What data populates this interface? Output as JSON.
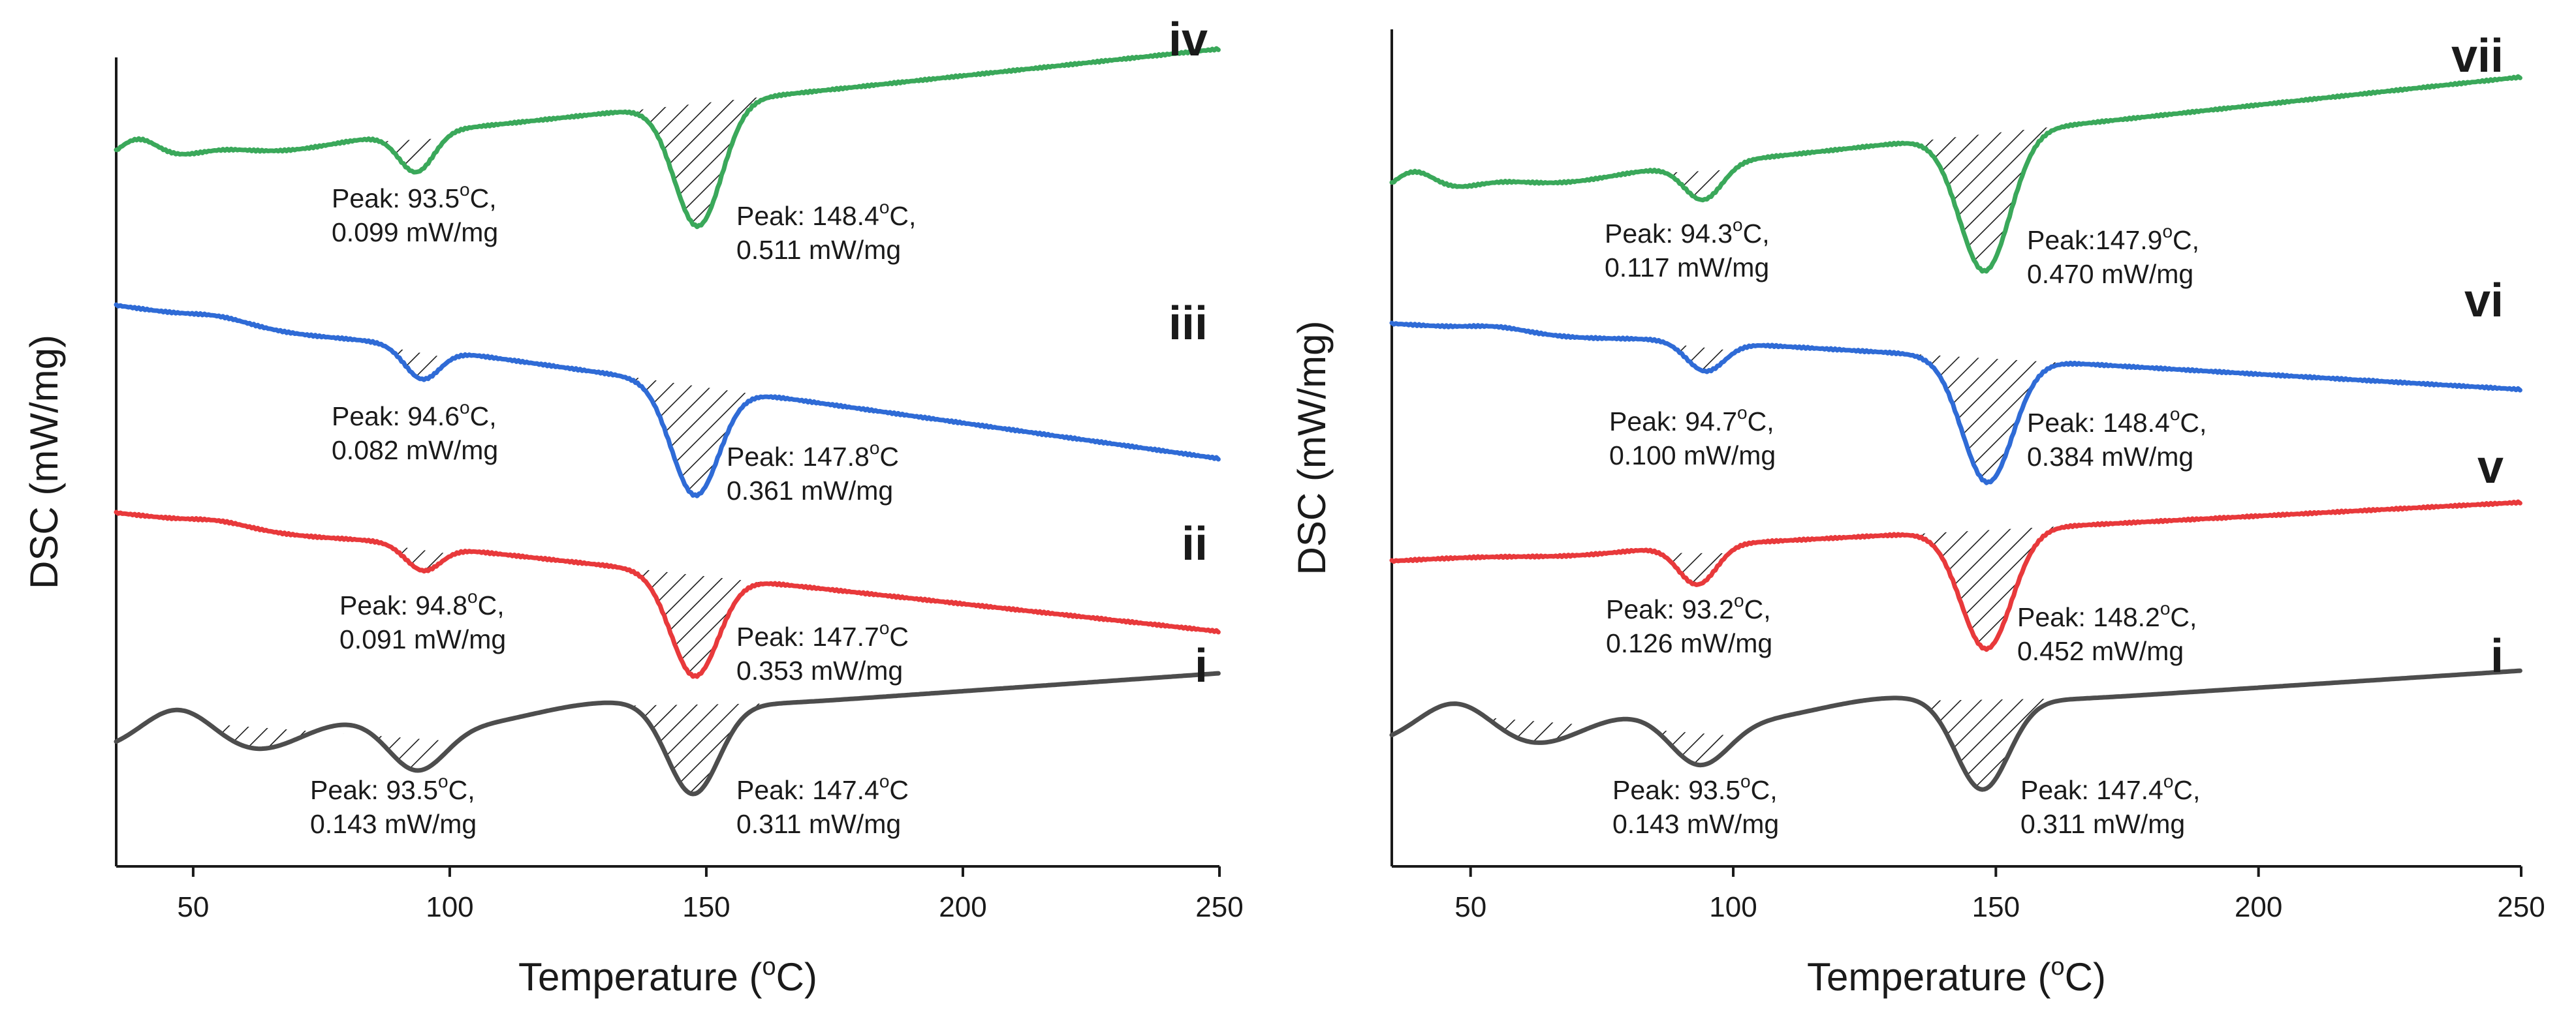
{
  "colors": {
    "i": "#4d4d4d",
    "ii": "#e8393b",
    "iii": "#2f6bd6",
    "iv": "#3aa85a",
    "v": "#e8393b",
    "vi": "#2f6bd6",
    "vii": "#3aa85a"
  },
  "chart_data": [
    {
      "type": "line",
      "panel": "left",
      "title": "",
      "xlabel": "Temperature (oC)",
      "ylabel": "DSC (mW/mg)",
      "xlim": [
        35,
        250
      ],
      "xticks": [
        50,
        100,
        150,
        200,
        250
      ],
      "x_tick_labels": [
        "50",
        "100",
        "150",
        "200",
        "250"
      ],
      "grid": false,
      "series": [
        {
          "id": "iv",
          "label": "iv",
          "peaks": [
            {
              "temperature_c": 93.5,
              "value_mw_mg": 0.099,
              "line1": "Peak: 93.5°C,",
              "line2": "0.099 mW/mg"
            },
            {
              "temperature_c": 148.4,
              "value_mw_mg": 0.511,
              "line1": "Peak: 148.4°C,",
              "line2": "0.511 mW/mg"
            }
          ]
        },
        {
          "id": "iii",
          "label": "iii",
          "peaks": [
            {
              "temperature_c": 94.6,
              "value_mw_mg": 0.082,
              "line1": "Peak: 94.6°C,",
              "line2": "0.082 mW/mg"
            },
            {
              "temperature_c": 147.8,
              "value_mw_mg": 0.361,
              "line1": "Peak: 147.8°C",
              "line2": "0.361 mW/mg"
            }
          ]
        },
        {
          "id": "ii",
          "label": "ii",
          "peaks": [
            {
              "temperature_c": 94.8,
              "value_mw_mg": 0.091,
              "line1": "Peak: 94.8°C,",
              "line2": "0.091 mW/mg"
            },
            {
              "temperature_c": 147.7,
              "value_mw_mg": 0.353,
              "line1": "Peak: 147.7°C",
              "line2": "0.353 mW/mg"
            }
          ]
        },
        {
          "id": "i",
          "label": "i",
          "peaks": [
            {
              "temperature_c": 93.5,
              "value_mw_mg": 0.143,
              "line1": "Peak: 93.5°C,",
              "line2": "0.143 mW/mg"
            },
            {
              "temperature_c": 147.4,
              "value_mw_mg": 0.311,
              "line1": "Peak: 147.4°C",
              "line2": "0.311 mW/mg"
            }
          ]
        }
      ]
    },
    {
      "type": "line",
      "panel": "right",
      "title": "",
      "xlabel": "Temperature (oC)",
      "ylabel": "DSC (mW/mg)",
      "xlim": [
        35,
        250
      ],
      "xticks": [
        50,
        100,
        150,
        200,
        250
      ],
      "x_tick_labels": [
        "50",
        "100",
        "150",
        "200",
        "250"
      ],
      "grid": false,
      "series": [
        {
          "id": "vii",
          "label": "vii",
          "peaks": [
            {
              "temperature_c": 94.3,
              "value_mw_mg": 0.117,
              "line1": "Peak: 94.3°C,",
              "line2": "0.117 mW/mg"
            },
            {
              "temperature_c": 147.9,
              "value_mw_mg": 0.47,
              "line1": "Peak:147.9°C,",
              "line2": "0.470 mW/mg"
            }
          ]
        },
        {
          "id": "vi",
          "label": "vi",
          "peaks": [
            {
              "temperature_c": 94.7,
              "value_mw_mg": 0.1,
              "line1": "Peak: 94.7°C,",
              "line2": "0.100 mW/mg"
            },
            {
              "temperature_c": 148.4,
              "value_mw_mg": 0.384,
              "line1": "Peak: 148.4°C,",
              "line2": "0.384 mW/mg"
            }
          ]
        },
        {
          "id": "v",
          "label": "v",
          "peaks": [
            {
              "temperature_c": 93.2,
              "value_mw_mg": 0.126,
              "line1": "Peak: 93.2°C,",
              "line2": "0.126 mW/mg"
            },
            {
              "temperature_c": 148.2,
              "value_mw_mg": 0.452,
              "line1": "Peak: 148.2°C,",
              "line2": "0.452 mW/mg"
            }
          ]
        },
        {
          "id": "i",
          "label": "i",
          "peaks": [
            {
              "temperature_c": 93.5,
              "value_mw_mg": 0.143,
              "line1": "Peak: 93.5°C,",
              "line2": "0.143 mW/mg"
            },
            {
              "temperature_c": 147.4,
              "value_mw_mg": 0.311,
              "line1": "Peak: 147.4°C,",
              "line2": "0.311 mW/mg"
            }
          ]
        }
      ]
    }
  ]
}
